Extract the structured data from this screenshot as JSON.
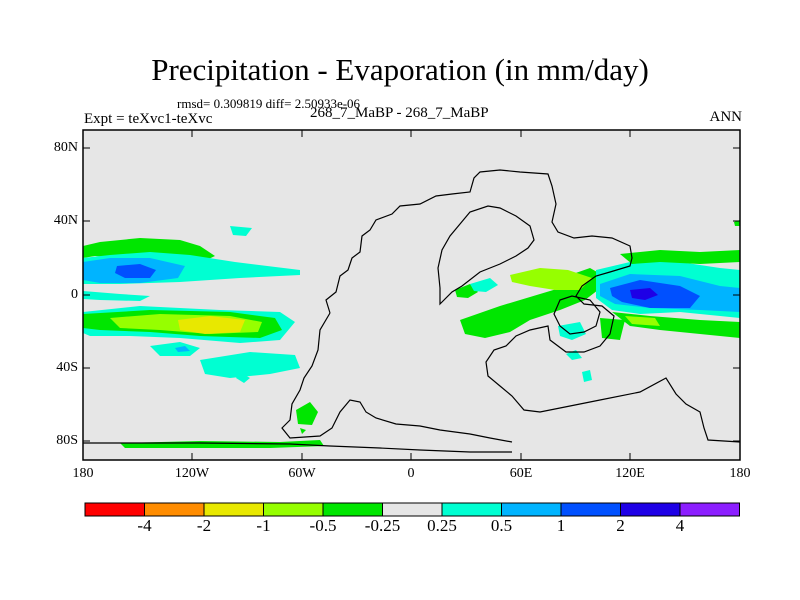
{
  "title": "Precipitation - Evaporation (in mm/day)",
  "stats": "rmsd= 0.309819 diff= 2.50933e-06",
  "left_label": "Expt = teXvc1-teXvc",
  "center_label": "268_7_MaBP - 268_7_MaBP",
  "right_label": "ANN",
  "y_ticks": [
    "80N",
    "40N",
    "0",
    "40S",
    "80S"
  ],
  "x_ticks": [
    "180",
    "120W",
    "60W",
    "0",
    "60E",
    "120E",
    "180"
  ],
  "colorbar": {
    "labels": [
      "-4",
      "-2",
      "-1",
      "-0.5",
      "-0.25",
      "0.25",
      "0.5",
      "1",
      "2",
      "4"
    ],
    "colors": [
      "#ff0000",
      "#ff8c00",
      "#e8e800",
      "#96ff00",
      "#00e600",
      "#e6e6e6",
      "#00ffd2",
      "#00b4ff",
      "#0050ff",
      "#1e00e6",
      "#8c1eff"
    ]
  },
  "colors": {
    "land_background": "#e6e6e6",
    "frame": "#000000"
  }
}
